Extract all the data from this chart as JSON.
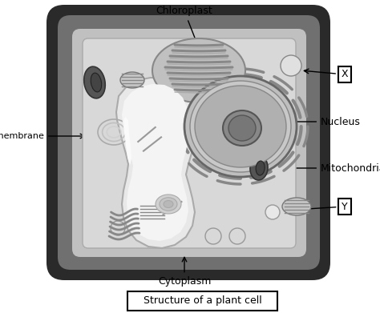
{
  "title": "Structure of a plant cell",
  "labels": {
    "chloroplast": "Chloroplast",
    "cell_membrane": "cell membrane",
    "nucleus": "Nucleus",
    "mitochondria": "Mitochondria",
    "cytoplasm": "Cytoplasm",
    "X": "X",
    "Y": "Y"
  },
  "figsize": [
    4.74,
    3.96
  ],
  "dpi": 100,
  "colors": {
    "bg": "#ffffff",
    "cell_outer": "#2a2a2a",
    "cell_mid": "#707070",
    "cell_inner": "#d8d8d8",
    "cell_inner_border": "#888888",
    "vacuole_fill": "#e8e8e8",
    "vacuole_light": "#f4f4f4",
    "vacuole_highlight": "#fafafa",
    "nucleus_bg": "#b8b8b8",
    "nucleus_inner": "#a0a0a0",
    "nucleus_core": "#888888",
    "nucleolus": "#606060",
    "er_color": "#888888",
    "chloro_outer": "#888888",
    "chloro_inner": "#aaaaaa",
    "chloro_thylakoid": "#666666",
    "mito_outer": "#444444",
    "mito_inner": "#333333",
    "organelle_border": "#666666",
    "small_oval_fill": "#b0b0b0",
    "small_oval_inner": "#cccccc",
    "circle_fill": "#d8d8d8",
    "golgi_color": "#777777",
    "starch_fill": "#cccccc"
  }
}
